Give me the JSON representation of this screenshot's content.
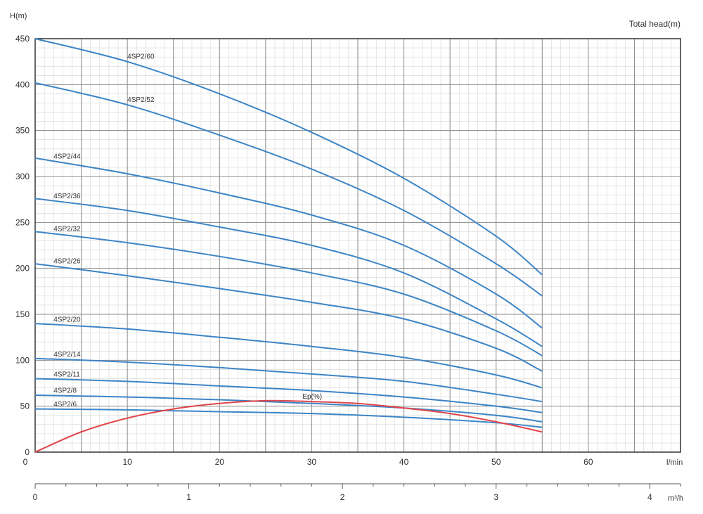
{
  "chart_data": {
    "type": "line",
    "ylabel": "H(m)",
    "ylabel_right": "Total head(m)",
    "x_unit_lmin": "l/min",
    "x_unit_m3h": "m³/h",
    "xlim_lmin": [
      0,
      70
    ],
    "ylim": [
      0,
      450
    ],
    "xlim_m3h": [
      0,
      4.2
    ],
    "x_ticks_lmin": [
      "0",
      "10",
      "20",
      "30",
      "40",
      "50",
      "60"
    ],
    "x_ticks_m3h": [
      "0",
      "1",
      "2",
      "3",
      "4"
    ],
    "y_ticks": [
      "0",
      "50",
      "100",
      "150",
      "200",
      "250",
      "300",
      "350",
      "400",
      "450"
    ],
    "grid": true,
    "series_color": "#3d85c6",
    "efficiency_color": "#e0474c",
    "series": [
      {
        "name": "4SP2/60",
        "x": [
          0,
          10,
          20,
          30,
          40,
          50,
          55
        ],
        "y": [
          450,
          425,
          390,
          348,
          298,
          235,
          193
        ]
      },
      {
        "name": "4SP2/52",
        "x": [
          0,
          10,
          20,
          30,
          40,
          50,
          55
        ],
        "y": [
          402,
          378,
          345,
          308,
          263,
          205,
          170
        ]
      },
      {
        "name": "4SP2/44",
        "x": [
          0,
          10,
          20,
          30,
          40,
          50,
          55
        ],
        "y": [
          320,
          303,
          282,
          258,
          225,
          172,
          135
        ]
      },
      {
        "name": "4SP2/36",
        "x": [
          0,
          10,
          20,
          30,
          40,
          50,
          55
        ],
        "y": [
          276,
          263,
          245,
          225,
          195,
          145,
          115
        ]
      },
      {
        "name": "4SP2/32",
        "x": [
          0,
          10,
          20,
          30,
          40,
          50,
          55
        ],
        "y": [
          240,
          228,
          213,
          195,
          172,
          132,
          105
        ]
      },
      {
        "name": "4SP2/26",
        "x": [
          0,
          10,
          20,
          30,
          40,
          50,
          55
        ],
        "y": [
          205,
          192,
          178,
          163,
          145,
          113,
          88
        ]
      },
      {
        "name": "4SP2/20",
        "x": [
          0,
          10,
          20,
          30,
          40,
          50,
          55
        ],
        "y": [
          140,
          134,
          125,
          115,
          103,
          84,
          70
        ]
      },
      {
        "name": "4SP2/14",
        "x": [
          0,
          10,
          20,
          30,
          40,
          50,
          55
        ],
        "y": [
          102,
          98,
          92,
          85,
          77,
          63,
          55
        ]
      },
      {
        "name": "4SP2/11",
        "x": [
          0,
          10,
          20,
          30,
          40,
          50,
          55
        ],
        "y": [
          80,
          77,
          72,
          67,
          60,
          50,
          43
        ]
      },
      {
        "name": "4SP2/8",
        "x": [
          0,
          10,
          20,
          30,
          40,
          50,
          55
        ],
        "y": [
          62,
          60,
          57,
          53,
          48,
          40,
          33
        ]
      },
      {
        "name": "4SP2/6",
        "x": [
          0,
          10,
          20,
          30,
          40,
          50,
          55
        ],
        "y": [
          47,
          46,
          44,
          42,
          38,
          32,
          27
        ]
      }
    ],
    "efficiency": {
      "name": "Ep(%)",
      "x": [
        0,
        5,
        10,
        15,
        20,
        25,
        30,
        35,
        40,
        45,
        50,
        55
      ],
      "y": [
        0,
        22,
        37,
        47,
        53,
        56,
        55,
        53,
        48,
        42,
        33,
        22
      ]
    }
  }
}
